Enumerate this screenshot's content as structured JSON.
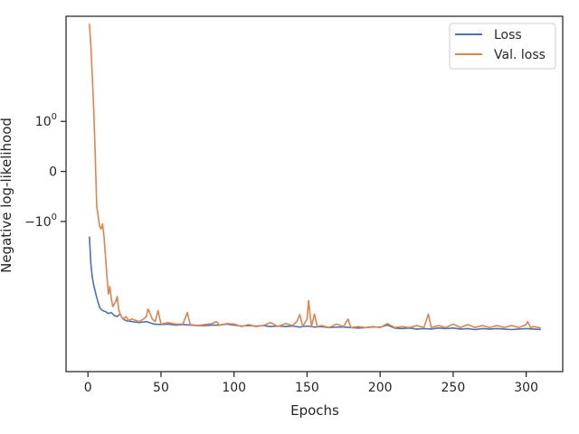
{
  "chart_data": {
    "type": "line",
    "title": "",
    "xlabel": "Epochs",
    "ylabel": "Negative log-likelihood",
    "xlim": [
      -15,
      325
    ],
    "x_ticks": [
      0,
      50,
      100,
      150,
      200,
      250,
      300
    ],
    "x_tick_labels": [
      "0",
      "50",
      "100",
      "150",
      "200",
      "250",
      "300"
    ],
    "yscale": "symlog",
    "y_ticks": [
      1,
      0,
      -1
    ],
    "y_tick_labels": [
      {
        "base": "10",
        "exp": "0",
        "sign": ""
      },
      {
        "base": "0",
        "exp": "",
        "sign": ""
      },
      {
        "base": "10",
        "exp": "0",
        "sign": "−"
      }
    ],
    "ylim": [
      -4.0,
      3.1
    ],
    "grid": false,
    "legend_position": "top-right",
    "series": [
      {
        "name": "Loss",
        "color": "#4c72b0",
        "points": [
          [
            1,
            -1.3
          ],
          [
            2,
            -1.85
          ],
          [
            3,
            -2.12
          ],
          [
            4,
            -2.28
          ],
          [
            5,
            -2.4
          ],
          [
            6,
            -2.52
          ],
          [
            7,
            -2.62
          ],
          [
            8,
            -2.72
          ],
          [
            9,
            -2.75
          ],
          [
            10,
            -2.78
          ],
          [
            12,
            -2.8
          ],
          [
            14,
            -2.84
          ],
          [
            16,
            -2.82
          ],
          [
            18,
            -2.88
          ],
          [
            20,
            -2.9
          ],
          [
            22,
            -2.85
          ],
          [
            24,
            -2.95
          ],
          [
            26,
            -2.98
          ],
          [
            30,
            -3.0
          ],
          [
            35,
            -3.02
          ],
          [
            40,
            -3.0
          ],
          [
            45,
            -3.05
          ],
          [
            50,
            -3.06
          ],
          [
            55,
            -3.05
          ],
          [
            60,
            -3.07
          ],
          [
            65,
            -3.06
          ],
          [
            70,
            -3.07
          ],
          [
            75,
            -3.08
          ],
          [
            80,
            -3.08
          ],
          [
            85,
            -3.07
          ],
          [
            90,
            -3.07
          ],
          [
            95,
            -3.05
          ],
          [
            100,
            -3.07
          ],
          [
            105,
            -3.09
          ],
          [
            110,
            -3.08
          ],
          [
            115,
            -3.09
          ],
          [
            120,
            -3.08
          ],
          [
            125,
            -3.1
          ],
          [
            130,
            -3.09
          ],
          [
            135,
            -3.1
          ],
          [
            140,
            -3.09
          ],
          [
            145,
            -3.11
          ],
          [
            150,
            -3.09
          ],
          [
            155,
            -3.11
          ],
          [
            160,
            -3.1
          ],
          [
            165,
            -3.12
          ],
          [
            170,
            -3.11
          ],
          [
            175,
            -3.11
          ],
          [
            180,
            -3.12
          ],
          [
            185,
            -3.13
          ],
          [
            190,
            -3.12
          ],
          [
            195,
            -3.11
          ],
          [
            200,
            -3.11
          ],
          [
            205,
            -3.07
          ],
          [
            210,
            -3.13
          ],
          [
            215,
            -3.14
          ],
          [
            220,
            -3.13
          ],
          [
            225,
            -3.15
          ],
          [
            230,
            -3.14
          ],
          [
            235,
            -3.15
          ],
          [
            240,
            -3.13
          ],
          [
            245,
            -3.14
          ],
          [
            250,
            -3.13
          ],
          [
            255,
            -3.15
          ],
          [
            260,
            -3.14
          ],
          [
            265,
            -3.16
          ],
          [
            270,
            -3.14
          ],
          [
            275,
            -3.15
          ],
          [
            280,
            -3.14
          ],
          [
            285,
            -3.15
          ],
          [
            290,
            -3.16
          ],
          [
            295,
            -3.15
          ],
          [
            300,
            -3.14
          ],
          [
            305,
            -3.15
          ],
          [
            310,
            -3.16
          ]
        ]
      },
      {
        "name": "Val. loss",
        "color": "#dd8452",
        "points": [
          [
            1,
            2.95
          ],
          [
            2,
            2.5
          ],
          [
            3,
            1.9
          ],
          [
            4,
            1.2
          ],
          [
            5,
            0.3
          ],
          [
            6,
            -0.7
          ],
          [
            7,
            -0.9
          ],
          [
            8,
            -1.1
          ],
          [
            9,
            -1.15
          ],
          [
            10,
            -1.05
          ],
          [
            11,
            -1.3
          ],
          [
            12,
            -1.7
          ],
          [
            13,
            -2.1
          ],
          [
            14,
            -2.45
          ],
          [
            15,
            -2.3
          ],
          [
            16,
            -2.55
          ],
          [
            17,
            -2.7
          ],
          [
            18,
            -2.65
          ],
          [
            19,
            -2.6
          ],
          [
            20,
            -2.5
          ],
          [
            21,
            -2.75
          ],
          [
            22,
            -2.85
          ],
          [
            24,
            -2.95
          ],
          [
            26,
            -2.9
          ],
          [
            28,
            -2.98
          ],
          [
            30,
            -2.95
          ],
          [
            35,
            -3.0
          ],
          [
            38,
            -2.95
          ],
          [
            40,
            -2.9
          ],
          [
            41,
            -2.75
          ],
          [
            42,
            -2.8
          ],
          [
            44,
            -2.95
          ],
          [
            46,
            -3.0
          ],
          [
            48,
            -2.78
          ],
          [
            50,
            -3.05
          ],
          [
            55,
            -3.02
          ],
          [
            60,
            -3.05
          ],
          [
            65,
            -3.05
          ],
          [
            68,
            -2.82
          ],
          [
            70,
            -3.06
          ],
          [
            75,
            -3.08
          ],
          [
            80,
            -3.06
          ],
          [
            85,
            -3.04
          ],
          [
            88,
            -3.0
          ],
          [
            90,
            -3.07
          ],
          [
            95,
            -3.04
          ],
          [
            100,
            -3.05
          ],
          [
            105,
            -3.1
          ],
          [
            110,
            -3.06
          ],
          [
            115,
            -3.1
          ],
          [
            120,
            -3.08
          ],
          [
            125,
            -3.02
          ],
          [
            130,
            -3.1
          ],
          [
            135,
            -3.04
          ],
          [
            140,
            -3.08
          ],
          [
            143,
            -3.0
          ],
          [
            145,
            -2.86
          ],
          [
            147,
            -3.1
          ],
          [
            150,
            -2.95
          ],
          [
            151,
            -2.58
          ],
          [
            153,
            -3.1
          ],
          [
            155,
            -2.85
          ],
          [
            157,
            -3.1
          ],
          [
            160,
            -3.08
          ],
          [
            165,
            -3.12
          ],
          [
            170,
            -3.05
          ],
          [
            175,
            -3.1
          ],
          [
            178,
            -2.95
          ],
          [
            180,
            -3.12
          ],
          [
            185,
            -3.1
          ],
          [
            190,
            -3.12
          ],
          [
            195,
            -3.1
          ],
          [
            200,
            -3.12
          ],
          [
            205,
            -3.04
          ],
          [
            210,
            -3.12
          ],
          [
            215,
            -3.1
          ],
          [
            220,
            -3.12
          ],
          [
            225,
            -3.08
          ],
          [
            230,
            -3.12
          ],
          [
            233,
            -2.85
          ],
          [
            235,
            -3.12
          ],
          [
            240,
            -3.08
          ],
          [
            245,
            -3.12
          ],
          [
            250,
            -3.05
          ],
          [
            255,
            -3.12
          ],
          [
            260,
            -3.06
          ],
          [
            265,
            -3.12
          ],
          [
            270,
            -3.08
          ],
          [
            275,
            -3.12
          ],
          [
            280,
            -3.08
          ],
          [
            285,
            -3.12
          ],
          [
            290,
            -3.08
          ],
          [
            295,
            -3.12
          ],
          [
            300,
            -3.06
          ],
          [
            301,
            -3.0
          ],
          [
            303,
            -3.12
          ],
          [
            305,
            -3.1
          ],
          [
            310,
            -3.13
          ]
        ]
      }
    ]
  }
}
